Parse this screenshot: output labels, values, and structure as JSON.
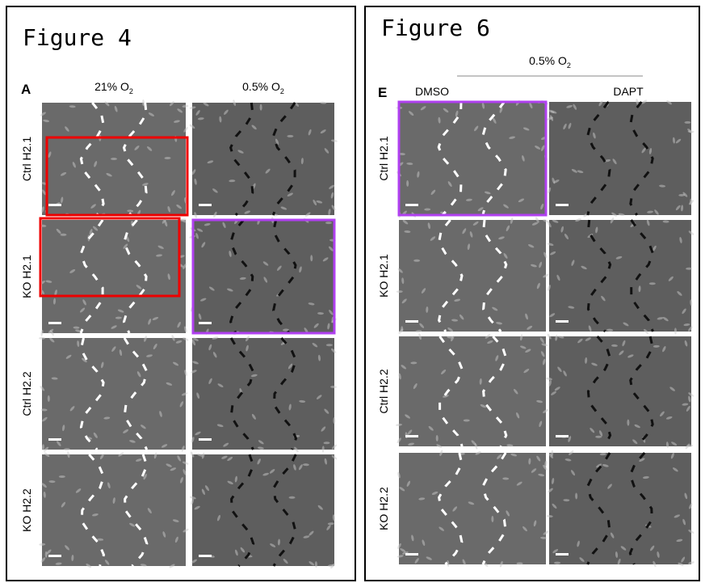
{
  "panels": [
    {
      "title": "Figure 4",
      "letter": "A",
      "columns": [
        {
          "text": "21% O",
          "sub": "2"
        },
        {
          "text": "0.5% O",
          "sub": "2"
        }
      ],
      "rows": [
        "Ctrl H2.1",
        "KO H2.1",
        "Ctrl H2.2",
        "KO H2.2"
      ]
    },
    {
      "title": "Figure 6",
      "letter": "E",
      "condition": {
        "text": "0.5% O",
        "sub": "2"
      },
      "columns": [
        "DMSO",
        "DAPT"
      ],
      "rows": [
        "Ctrl H2.1",
        "KO H2.1",
        "Ctrl H2.2",
        "KO H2.2"
      ]
    }
  ]
}
